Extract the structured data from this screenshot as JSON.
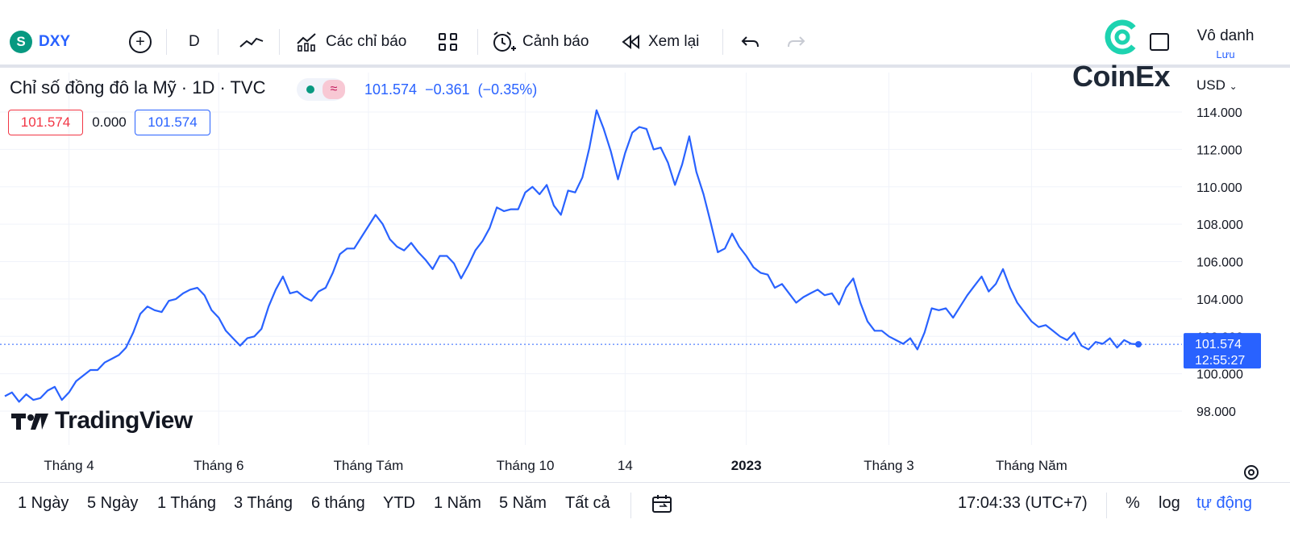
{
  "toolbar": {
    "symbol_icon": "S",
    "symbol": "DXY",
    "interval": "D",
    "indicators_label": "Các chỉ báo",
    "alert_label": "Cảnh báo",
    "replay_label": "Xem lại",
    "colors": {
      "accent": "#2962ff",
      "symbol_badge": "#089981"
    }
  },
  "brand": {
    "name": "CoinEx"
  },
  "user": {
    "name": "Vô danh",
    "save_label": "Lưu"
  },
  "legend": {
    "title": "Chỉ số đồng đô la Mỹ · 1D · TVC",
    "wave_icon": "≈",
    "last": "101.574",
    "change": "−0.361",
    "change_pct": "(−0.35%)",
    "box_left": "101.574",
    "box_mid": "0.000",
    "box_right": "101.574"
  },
  "price_axis": {
    "currency": "USD"
  },
  "watermark": {
    "text": "TradingView"
  },
  "last_price_label": {
    "price": "101.574",
    "countdown": "12:55:27"
  },
  "chart_data": {
    "type": "line",
    "series": [
      {
        "color": "#2962ff",
        "points": [
          [
            0,
            98.8
          ],
          [
            1,
            99.0
          ],
          [
            2,
            98.5
          ],
          [
            3,
            98.9
          ],
          [
            4,
            98.6
          ],
          [
            5,
            98.7
          ],
          [
            6,
            99.1
          ],
          [
            7,
            99.3
          ],
          [
            8,
            98.6
          ],
          [
            9,
            99.0
          ],
          [
            10,
            99.6
          ],
          [
            11,
            99.9
          ],
          [
            12,
            100.2
          ],
          [
            13,
            100.2
          ],
          [
            14,
            100.6
          ],
          [
            15,
            100.8
          ],
          [
            16,
            101.0
          ],
          [
            17,
            101.4
          ],
          [
            18,
            102.2
          ],
          [
            19,
            103.2
          ],
          [
            20,
            103.6
          ],
          [
            21,
            103.4
          ],
          [
            22,
            103.3
          ],
          [
            23,
            103.9
          ],
          [
            24,
            104.0
          ],
          [
            25,
            104.3
          ],
          [
            26,
            104.5
          ],
          [
            27,
            104.6
          ],
          [
            28,
            104.2
          ],
          [
            29,
            103.4
          ],
          [
            30,
            103.0
          ],
          [
            31,
            102.3
          ],
          [
            32,
            101.9
          ],
          [
            33,
            101.5
          ],
          [
            34,
            101.9
          ],
          [
            35,
            102.0
          ],
          [
            36,
            102.4
          ],
          [
            37,
            103.6
          ],
          [
            38,
            104.5
          ],
          [
            39,
            105.2
          ],
          [
            40,
            104.3
          ],
          [
            41,
            104.4
          ],
          [
            42,
            104.1
          ],
          [
            43,
            103.9
          ],
          [
            44,
            104.4
          ],
          [
            45,
            104.6
          ],
          [
            46,
            105.4
          ],
          [
            47,
            106.4
          ],
          [
            48,
            106.7
          ],
          [
            49,
            106.7
          ],
          [
            50,
            107.3
          ],
          [
            51,
            107.9
          ],
          [
            52,
            108.5
          ],
          [
            53,
            108.0
          ],
          [
            54,
            107.2
          ],
          [
            55,
            106.8
          ],
          [
            56,
            106.6
          ],
          [
            57,
            107.0
          ],
          [
            58,
            106.5
          ],
          [
            59,
            106.1
          ],
          [
            60,
            105.6
          ],
          [
            61,
            106.3
          ],
          [
            62,
            106.3
          ],
          [
            63,
            105.9
          ],
          [
            64,
            105.1
          ],
          [
            65,
            105.8
          ],
          [
            66,
            106.6
          ],
          [
            67,
            107.1
          ],
          [
            68,
            107.8
          ],
          [
            69,
            108.9
          ],
          [
            70,
            108.7
          ],
          [
            71,
            108.8
          ],
          [
            72,
            108.8
          ],
          [
            73,
            109.7
          ],
          [
            74,
            110.0
          ],
          [
            75,
            109.6
          ],
          [
            76,
            110.1
          ],
          [
            77,
            109.0
          ],
          [
            78,
            108.5
          ],
          [
            79,
            109.8
          ],
          [
            80,
            109.7
          ],
          [
            81,
            110.5
          ],
          [
            82,
            112.1
          ],
          [
            83,
            114.1
          ],
          [
            84,
            113.1
          ],
          [
            85,
            111.9
          ],
          [
            86,
            110.4
          ],
          [
            87,
            111.8
          ],
          [
            88,
            112.9
          ],
          [
            89,
            113.2
          ],
          [
            90,
            113.1
          ],
          [
            91,
            112.0
          ],
          [
            92,
            112.1
          ],
          [
            93,
            111.3
          ],
          [
            94,
            110.1
          ],
          [
            95,
            111.2
          ],
          [
            96,
            112.7
          ],
          [
            97,
            110.8
          ],
          [
            98,
            109.6
          ],
          [
            99,
            108.1
          ],
          [
            100,
            106.5
          ],
          [
            101,
            106.7
          ],
          [
            102,
            107.5
          ],
          [
            103,
            106.8
          ],
          [
            104,
            106.3
          ],
          [
            105,
            105.7
          ],
          [
            106,
            105.4
          ],
          [
            107,
            105.3
          ],
          [
            108,
            104.6
          ],
          [
            109,
            104.8
          ],
          [
            110,
            104.3
          ],
          [
            111,
            103.8
          ],
          [
            112,
            104.1
          ],
          [
            113,
            104.3
          ],
          [
            114,
            104.5
          ],
          [
            115,
            104.2
          ],
          [
            116,
            104.3
          ],
          [
            117,
            103.7
          ],
          [
            118,
            104.6
          ],
          [
            119,
            105.1
          ],
          [
            120,
            103.8
          ],
          [
            121,
            102.8
          ],
          [
            122,
            102.3
          ],
          [
            123,
            102.3
          ],
          [
            124,
            102.0
          ],
          [
            125,
            101.8
          ],
          [
            126,
            101.6
          ],
          [
            127,
            101.9
          ],
          [
            128,
            101.3
          ],
          [
            129,
            102.2
          ],
          [
            130,
            103.5
          ],
          [
            131,
            103.4
          ],
          [
            132,
            103.5
          ],
          [
            133,
            103.0
          ],
          [
            134,
            103.6
          ],
          [
            135,
            104.2
          ],
          [
            136,
            104.7
          ],
          [
            137,
            105.2
          ],
          [
            138,
            104.4
          ],
          [
            139,
            104.8
          ],
          [
            140,
            105.6
          ],
          [
            141,
            104.6
          ],
          [
            142,
            103.8
          ],
          [
            143,
            103.3
          ],
          [
            144,
            102.8
          ],
          [
            145,
            102.5
          ],
          [
            146,
            102.6
          ],
          [
            147,
            102.3
          ],
          [
            148,
            102.0
          ],
          [
            149,
            101.8
          ],
          [
            150,
            102.2
          ],
          [
            151,
            101.5
          ],
          [
            152,
            101.3
          ],
          [
            153,
            101.7
          ],
          [
            154,
            101.6
          ],
          [
            155,
            101.9
          ],
          [
            156,
            101.4
          ],
          [
            157,
            101.8
          ],
          [
            158,
            101.6
          ],
          [
            159,
            101.574
          ]
        ]
      }
    ],
    "yticks": [
      "114.000",
      "112.000",
      "110.000",
      "108.000",
      "106.000",
      "104.000",
      "102.000",
      "100.000",
      "98.000"
    ],
    "ylim": [
      97,
      115
    ],
    "xticks": [
      {
        "label": "Tháng 4",
        "x": 9,
        "bold": false
      },
      {
        "label": "Tháng 6",
        "x": 30,
        "bold": false
      },
      {
        "label": "Tháng Tám",
        "x": 51,
        "bold": false
      },
      {
        "label": "Tháng 10",
        "x": 73,
        "bold": false
      },
      {
        "label": "14",
        "x": 87,
        "bold": false
      },
      {
        "label": "2023",
        "x": 104,
        "bold": true
      },
      {
        "label": "Tháng 3",
        "x": 124,
        "bold": false
      },
      {
        "label": "Tháng Năm",
        "x": 144,
        "bold": false
      }
    ],
    "xlim": [
      0,
      160
    ],
    "grid": true
  },
  "bottombar": {
    "ranges": [
      "1 Ngày",
      "5 Ngày",
      "1 Tháng",
      "3 Tháng",
      "6 tháng",
      "YTD",
      "1 Năm",
      "5 Năm",
      "Tất cả"
    ],
    "time": "17:04:33 (UTC+7)",
    "percent": "%",
    "log": "log",
    "auto": "tự động"
  }
}
